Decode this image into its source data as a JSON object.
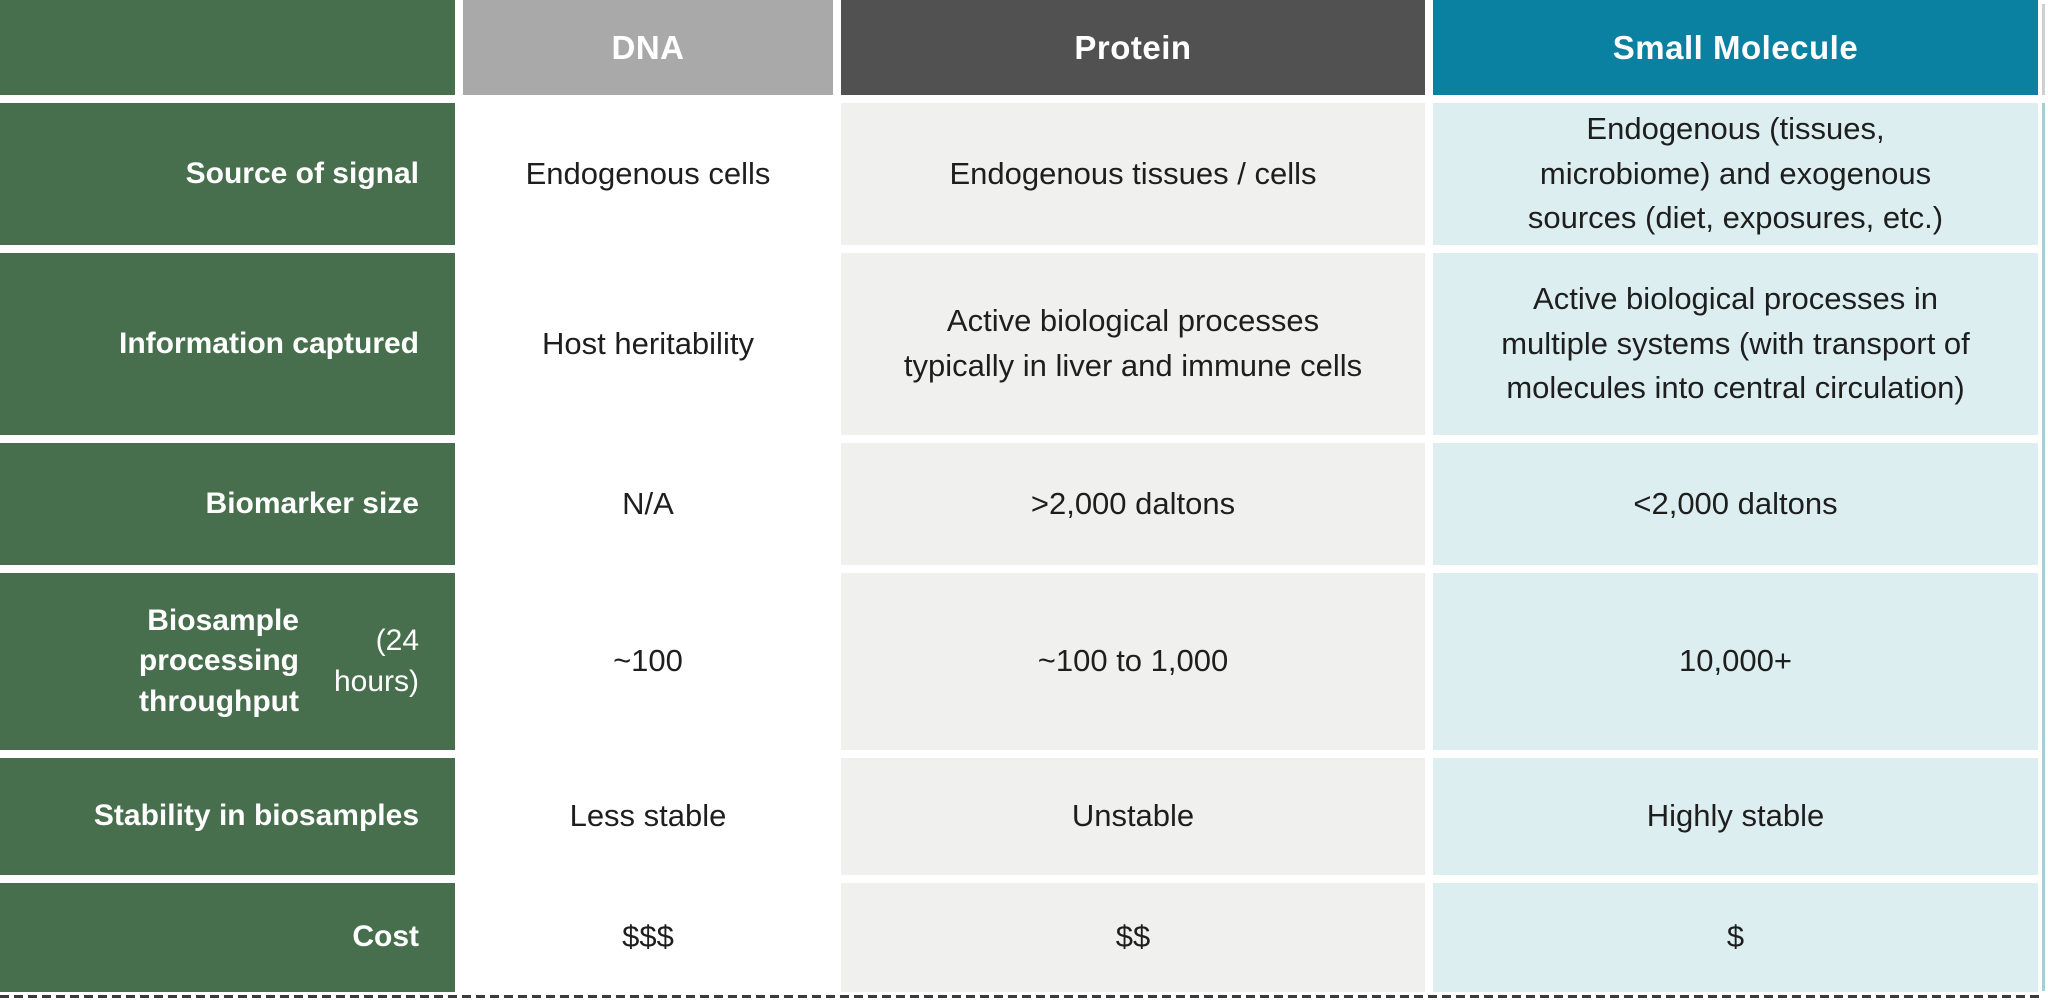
{
  "table": {
    "headers": {
      "row_labels": "",
      "dna": "DNA",
      "protein": "Protein",
      "small_molecule": "Small Molecule"
    },
    "rows": [
      {
        "label": "Source of signal",
        "dna": "Endogenous cells",
        "protein": "Endogenous tissues / cells",
        "small_molecule": "Endogenous (tissues,\nmicrobiome) and exogenous\nsources (diet, exposures, etc.)"
      },
      {
        "label": "Information captured",
        "dna": "Host heritability",
        "protein": "Active biological processes\ntypically in liver and immune cells",
        "small_molecule": "Active biological processes in\nmultiple systems (with transport of\nmolecules into central circulation)"
      },
      {
        "label": "Biomarker size",
        "dna": "N/A",
        "protein": ">2,000 daltons",
        "small_molecule": "<2,000 daltons"
      },
      {
        "label_bold": "Biosample processing\nthroughput",
        "label_note": " (24 hours)",
        "dna": "~100",
        "protein": "~100 to 1,000",
        "small_molecule": "10,000+"
      },
      {
        "label": "Stability in biosamples",
        "dna": "Less stable",
        "protein": "Unstable",
        "small_molecule": "Highly stable"
      },
      {
        "label": "Cost",
        "dna": "$$$",
        "protein": "$$",
        "small_molecule": "$"
      }
    ],
    "colors": {
      "row_label_bg": "#476e4d",
      "dna_header_bg": "#a9a9a9",
      "protein_header_bg": "#515151",
      "small_molecule_header_bg": "#0a81a0",
      "dna_cell_bg": "#ffffff",
      "protein_cell_bg": "#f0f0ee",
      "small_molecule_cell_bg": "#dceef0",
      "header_text": "#ffffff",
      "body_text": "#1e1e1e"
    }
  }
}
